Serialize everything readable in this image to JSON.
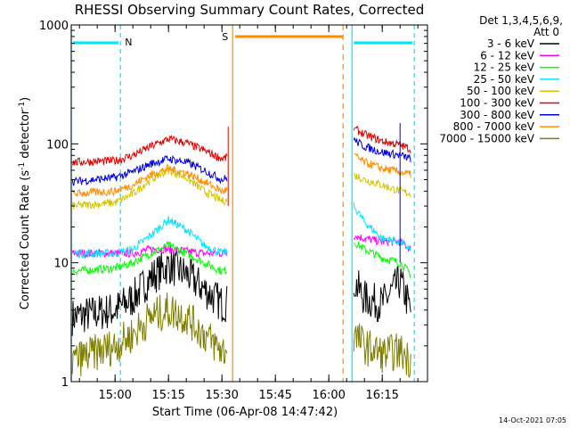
{
  "chart_data": {
    "type": "line",
    "title": "RHESSI Observing Summary Count Rates, Corrected",
    "xlabel": "Start Time (06-Apr-08 14:47:42)",
    "ylabel_main": "Corrected Count Rate (s",
    "ylabel_sup1": "-1",
    "ylabel_mid": " detector",
    "ylabel_sup2": "-1",
    "ylabel_end": ")",
    "y_scale": "log",
    "ylim": [
      1,
      1000
    ],
    "xlim": [
      "14:47:42",
      "16:27:42"
    ],
    "yticks": [
      {
        "value": 1,
        "label": "1"
      },
      {
        "value": 10,
        "label": "10"
      },
      {
        "value": 100,
        "label": "100"
      },
      {
        "value": 1000,
        "label": "1000"
      }
    ],
    "xticks": [
      {
        "time": "15:00",
        "label": "15:00"
      },
      {
        "time": "15:15",
        "label": "15:15"
      },
      {
        "time": "15:30",
        "label": "15:30"
      },
      {
        "time": "15:45",
        "label": "15:45"
      },
      {
        "time": "16:00",
        "label": "16:00"
      },
      {
        "time": "16:15",
        "label": "16:15"
      }
    ],
    "legend_header": [
      "Det 1,3,4,5,6,9,",
      "Att 0"
    ],
    "legend_position": "right",
    "series": [
      {
        "name": "3 - 6 keV",
        "color": "#000000",
        "x": [
          "14:48",
          "15:00",
          "15:05",
          "15:10",
          "15:15",
          "15:20",
          "15:25",
          "15:30",
          "16:07",
          "16:10",
          "16:15",
          "16:20",
          "16:23"
        ],
        "values": [
          3.5,
          4,
          5,
          7.5,
          9.5,
          8,
          6,
          4.5,
          7,
          5,
          4.5,
          7,
          4
        ]
      },
      {
        "name": "6 - 12 keV",
        "color": "#ff00ff",
        "x": [
          "14:48",
          "15:00",
          "15:05",
          "15:10",
          "15:15",
          "15:20",
          "15:25",
          "15:30",
          "16:07",
          "16:10",
          "16:15",
          "16:20",
          "16:23"
        ],
        "values": [
          12,
          12,
          12,
          13,
          13,
          12.5,
          12,
          12,
          17,
          16,
          15,
          15,
          13
        ]
      },
      {
        "name": "12 - 25 keV",
        "color": "#00ff00",
        "x": [
          "14:48",
          "15:00",
          "15:05",
          "15:10",
          "15:15",
          "15:20",
          "15:25",
          "15:30",
          "16:07",
          "16:10",
          "16:15",
          "16:20",
          "16:23"
        ],
        "values": [
          8.5,
          9,
          10,
          12,
          14,
          12,
          10,
          8.5,
          15,
          13,
          11,
          10,
          8
        ]
      },
      {
        "name": "25 - 50 keV",
        "color": "#00e5ff",
        "x": [
          "14:48",
          "15:00",
          "15:05",
          "15:10",
          "15:15",
          "15:20",
          "15:25",
          "15:30",
          "16:07",
          "16:10",
          "16:15",
          "16:20",
          "16:23"
        ],
        "values": [
          12,
          12,
          13,
          17,
          23,
          19,
          14,
          12,
          30,
          22,
          16,
          15,
          13
        ]
      },
      {
        "name": "50 - 100 keV",
        "color": "#d4c400",
        "x": [
          "14:48",
          "15:00",
          "15:05",
          "15:10",
          "15:15",
          "15:20",
          "15:25",
          "15:30",
          "16:07",
          "16:10",
          "16:15",
          "16:20",
          "16:23"
        ],
        "values": [
          30,
          32,
          38,
          50,
          60,
          52,
          40,
          33,
          55,
          50,
          45,
          40,
          38
        ]
      },
      {
        "name": "100 - 300 keV",
        "color": "#e00000",
        "x": [
          "14:48",
          "15:00",
          "15:05",
          "15:10",
          "15:15",
          "15:20",
          "15:25",
          "15:30",
          "16:07",
          "16:10",
          "16:15",
          "16:20",
          "16:23"
        ],
        "values": [
          70,
          72,
          80,
          95,
          110,
          102,
          88,
          75,
          135,
          120,
          105,
          98,
          90
        ]
      },
      {
        "name": "300 - 800 keV",
        "color": "#0000e0",
        "x": [
          "14:48",
          "15:00",
          "15:05",
          "15:10",
          "15:15",
          "15:20",
          "15:25",
          "15:30",
          "16:07",
          "16:10",
          "16:15",
          "16:20",
          "16:23"
        ],
        "values": [
          48,
          52,
          58,
          68,
          75,
          70,
          60,
          50,
          108,
          95,
          85,
          80,
          75
        ]
      },
      {
        "name": "800 - 7000 keV",
        "color": "#ff8c00",
        "x": [
          "14:48",
          "15:00",
          "15:05",
          "15:10",
          "15:15",
          "15:20",
          "15:25",
          "15:30",
          "16:07",
          "16:10",
          "16:15",
          "16:20",
          "16:23"
        ],
        "values": [
          38,
          40,
          45,
          55,
          62,
          57,
          48,
          40,
          80,
          70,
          62,
          58,
          55
        ]
      },
      {
        "name": "7000 - 15000 keV",
        "color": "#808000",
        "x": [
          "14:48",
          "15:00",
          "15:05",
          "15:10",
          "15:15",
          "15:20",
          "15:25",
          "15:30",
          "16:07",
          "16:10",
          "16:15",
          "16:20",
          "16:23"
        ],
        "values": [
          1.5,
          2,
          2.5,
          3.5,
          4,
          3.5,
          2.5,
          1.8,
          2.5,
          2,
          1.7,
          1.8,
          1.5
        ]
      }
    ],
    "night_intervals": [
      {
        "label": "N",
        "start": "14:47:42",
        "end": "15:01:30",
        "color": "#00e5ff"
      },
      {
        "label": "",
        "start": "16:06:30",
        "end": "16:24:00",
        "color": "#00e5ff"
      }
    ],
    "saa_interval": {
      "label": "S",
      "start": "15:33:00",
      "end": "16:04:00",
      "color": "#ff8c00"
    },
    "timestamp": "14-Oct-2021 07:05"
  }
}
